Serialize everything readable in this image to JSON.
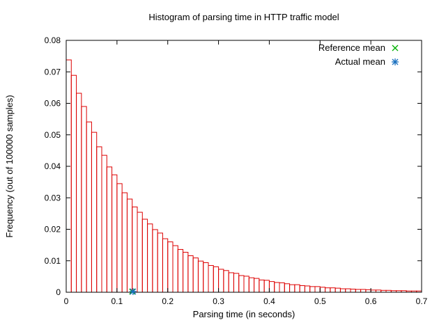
{
  "chart_data": {
    "type": "bar",
    "subtype": "histogram",
    "title": "Histogram of parsing time in HTTP traffic model",
    "xlabel": "Parsing time (in seconds)",
    "ylabel": "Frequency (out of 100000 samples)",
    "xlim": [
      0,
      0.7
    ],
    "ylim": [
      0,
      0.08
    ],
    "grid": false,
    "legend_position": "top-right-inside",
    "xticks": {
      "values": [
        0,
        0.1,
        0.2,
        0.3,
        0.4,
        0.5,
        0.6,
        0.7
      ],
      "labels": [
        "0",
        "0.1",
        "0.2",
        "0.3",
        "0.4",
        "0.5",
        "0.6",
        "0.7"
      ]
    },
    "yticks": {
      "values": [
        0,
        0.01,
        0.02,
        0.03,
        0.04,
        0.05,
        0.06,
        0.07,
        0.08
      ],
      "labels": [
        "0",
        "0.01",
        "0.02",
        "0.03",
        "0.04",
        "0.05",
        "0.06",
        "0.07",
        "0.08"
      ]
    },
    "bin_start": 0,
    "bin_width": 0.01,
    "bar_color": "#dd0000",
    "values": [
      0.0738,
      0.0689,
      0.0632,
      0.059,
      0.0541,
      0.0508,
      0.0462,
      0.0435,
      0.0398,
      0.0373,
      0.0345,
      0.0316,
      0.0296,
      0.0271,
      0.0254,
      0.0232,
      0.0217,
      0.0199,
      0.0188,
      0.017,
      0.016,
      0.0148,
      0.0136,
      0.0127,
      0.0116,
      0.0109,
      0.0099,
      0.0094,
      0.0085,
      0.0081,
      0.0073,
      0.0069,
      0.0062,
      0.006,
      0.0053,
      0.0051,
      0.0046,
      0.0044,
      0.0039,
      0.0038,
      0.0034,
      0.0031,
      0.003,
      0.0027,
      0.0024,
      0.0024,
      0.0021,
      0.002,
      0.0018,
      0.0018,
      0.0016,
      0.0014,
      0.0014,
      0.0013,
      0.0011,
      0.0011,
      0.001,
      0.0009,
      0.0009,
      0.0008,
      0.0007,
      0.0007,
      0.0006,
      0.0006,
      0.0005,
      0.0005,
      0.0005,
      0.0004,
      0.0004,
      0.0004
    ],
    "legend": [
      {
        "label": "Reference mean",
        "symbol": "x",
        "color": "#00b000"
      },
      {
        "label": "Actual mean",
        "symbol": "asterisk",
        "color": "#1a70c0"
      }
    ],
    "markers": [
      {
        "name": "reference-mean",
        "x": 0.13,
        "y": 0,
        "symbol": "x",
        "color": "#00b000"
      },
      {
        "name": "actual-mean",
        "x": 0.1316,
        "y": 0,
        "symbol": "asterisk",
        "color": "#1a70c0"
      }
    ]
  }
}
